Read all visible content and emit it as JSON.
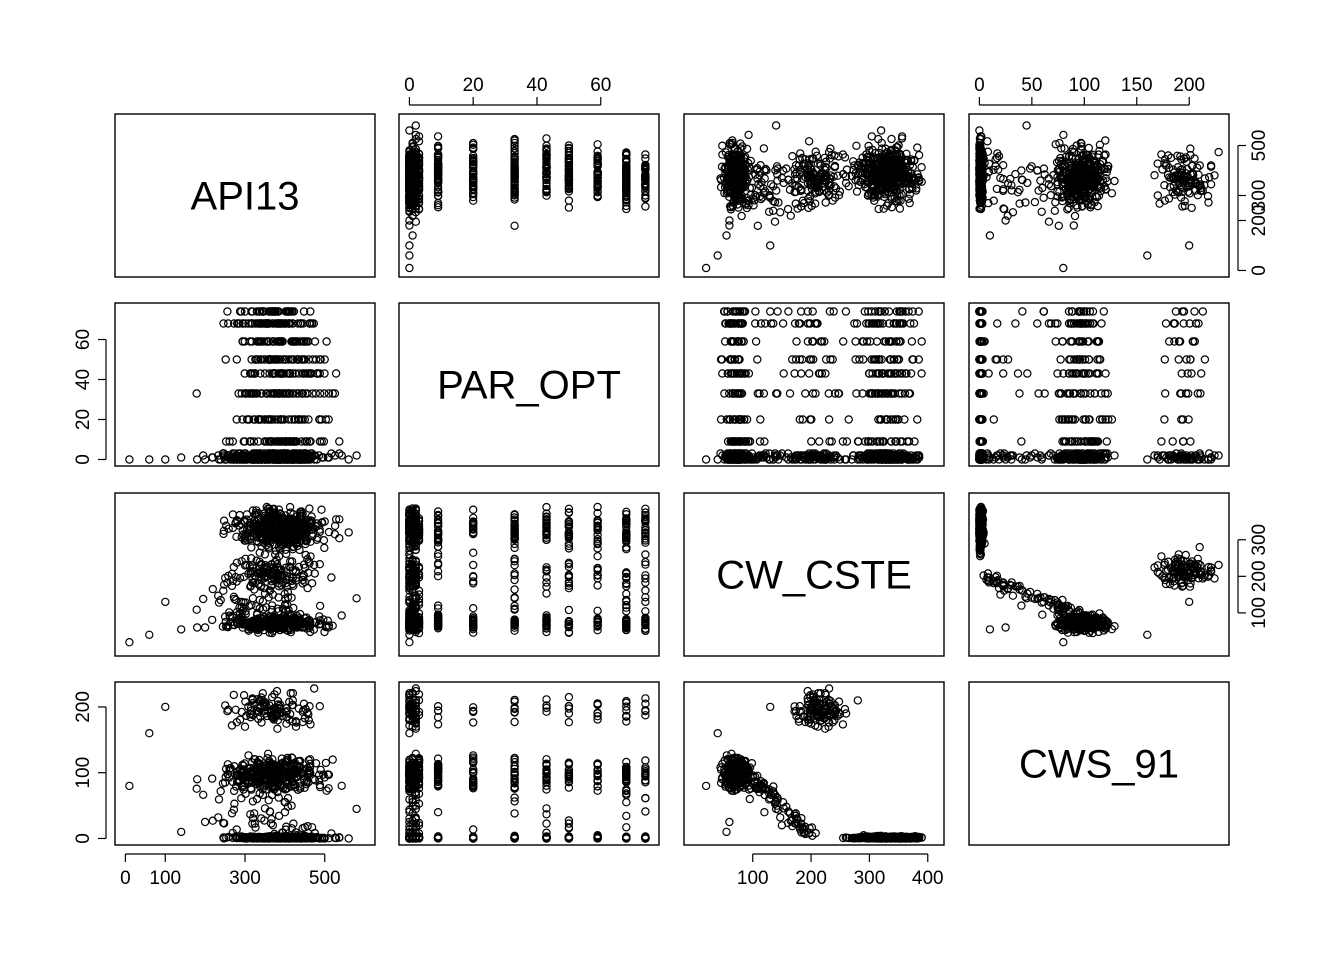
{
  "chart_data": {
    "type": "scatter",
    "subtype": "scatterplot-matrix",
    "variables": [
      "API13",
      "PAR_OPT",
      "CW_CSTE",
      "CWS_91"
    ],
    "ranges": {
      "API13": [
        0,
        600
      ],
      "PAR_OPT": [
        0,
        75
      ],
      "CW_CSTE": [
        0,
        410
      ],
      "CWS_91": [
        0,
        228
      ]
    },
    "ticks": {
      "API13": [
        0,
        100,
        300,
        500
      ],
      "PAR_OPT": [
        0,
        20,
        40,
        60
      ],
      "CW_CSTE": [
        100,
        200,
        300,
        400
      ],
      "CWS_91": [
        0,
        50,
        100,
        150,
        200
      ]
    },
    "row_ticks": {
      "API13": [
        0,
        200,
        300,
        500
      ],
      "PAR_OPT": [
        0,
        20,
        40,
        60
      ],
      "CW_CSTE": [
        100,
        200,
        300
      ],
      "CWS_91": [
        0,
        100,
        200
      ]
    },
    "axes": {
      "top": [
        "PAR_OPT",
        "CWS_91"
      ],
      "bottom": [
        "API13",
        "CW_CSTE"
      ],
      "left": [
        "PAR_OPT",
        "CWS_91"
      ],
      "right": [
        "API13",
        "CW_CSTE"
      ]
    },
    "par_opt_levels": [
      0,
      1,
      2,
      3,
      9,
      20,
      33,
      43,
      50,
      59,
      68,
      74
    ],
    "samples": [
      {
        "API13": 320,
        "PAR_OPT": 0,
        "CW_CSTE": 380,
        "CWS_91": 0
      },
      {
        "API13": 350,
        "PAR_OPT": 20,
        "CW_CSTE": 360,
        "CWS_91": 0
      },
      {
        "API13": 410,
        "PAR_OPT": 33,
        "CW_CSTE": 330,
        "CWS_91": 0
      },
      {
        "API13": 480,
        "PAR_OPT": 43,
        "CW_CSTE": 300,
        "CWS_91": 2
      },
      {
        "API13": 500,
        "PAR_OPT": 50,
        "CW_CSTE": 350,
        "CWS_91": 0
      },
      {
        "API13": 430,
        "PAR_OPT": 59,
        "CW_CSTE": 290,
        "CWS_91": 5
      },
      {
        "API13": 390,
        "PAR_OPT": 68,
        "CW_CSTE": 370,
        "CWS_91": 0
      },
      {
        "API13": 300,
        "PAR_OPT": 74,
        "CW_CSTE": 310,
        "CWS_91": 0
      },
      {
        "API13": 280,
        "PAR_OPT": 0,
        "CW_CSTE": 75,
        "CWS_91": 95
      },
      {
        "API13": 360,
        "PAR_OPT": 0,
        "CW_CSTE": 80,
        "CWS_91": 100
      },
      {
        "API13": 420,
        "PAR_OPT": 2,
        "CW_CSTE": 70,
        "CWS_91": 110
      },
      {
        "API13": 250,
        "PAR_OPT": 0,
        "CW_CSTE": 90,
        "CWS_91": 85
      },
      {
        "API13": 450,
        "PAR_OPT": 20,
        "CW_CSTE": 85,
        "CWS_91": 105
      },
      {
        "API13": 520,
        "PAR_OPT": 33,
        "CW_CSTE": 65,
        "CWS_91": 120
      },
      {
        "API13": 180,
        "PAR_OPT": 0,
        "CW_CSTE": 60,
        "CWS_91": 90
      },
      {
        "API13": 330,
        "PAR_OPT": 1,
        "CW_CSTE": 95,
        "CWS_91": 60
      },
      {
        "API13": 400,
        "PAR_OPT": 9,
        "CW_CSTE": 120,
        "CWS_91": 40
      },
      {
        "API13": 370,
        "PAR_OPT": 3,
        "CW_CSTE": 150,
        "CWS_91": 20
      },
      {
        "API13": 350,
        "PAR_OPT": 0,
        "CW_CSTE": 260,
        "CWS_91": 190
      },
      {
        "API13": 420,
        "PAR_OPT": 0,
        "CW_CSTE": 280,
        "CWS_91": 210
      },
      {
        "API13": 300,
        "PAR_OPT": 1,
        "CW_CSTE": 230,
        "CWS_91": 170
      },
      {
        "API13": 380,
        "PAR_OPT": 50,
        "CW_CSTE": 200,
        "CWS_91": 190
      },
      {
        "API13": 460,
        "PAR_OPT": 0,
        "CW_CSTE": 240,
        "CWS_91": 180
      },
      {
        "API13": 10,
        "PAR_OPT": 0,
        "CW_CSTE": 20,
        "CWS_91": 80
      },
      {
        "API13": 100,
        "PAR_OPT": 0,
        "CW_CSTE": 130,
        "CWS_91": 200
      },
      {
        "API13": 60,
        "PAR_OPT": 0,
        "CW_CSTE": 40,
        "CWS_91": 160
      },
      {
        "API13": 200,
        "PAR_OPT": 0,
        "CW_CSTE": 60,
        "CWS_91": 25
      },
      {
        "API13": 580,
        "PAR_OPT": 2,
        "CW_CSTE": 140,
        "CWS_91": 45
      },
      {
        "API13": 560,
        "PAR_OPT": 0,
        "CW_CSTE": 320,
        "CWS_91": 0
      },
      {
        "API13": 140,
        "PAR_OPT": 1,
        "CW_CSTE": 55,
        "CWS_91": 10
      }
    ]
  }
}
